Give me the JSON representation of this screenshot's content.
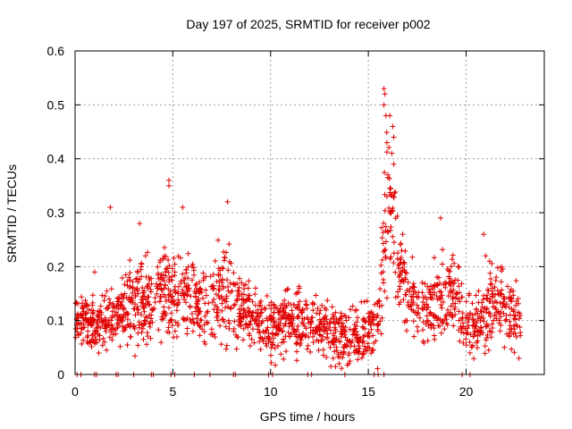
{
  "chart_data": {
    "type": "scatter",
    "title": "Day 197 of 2025, SRMTID for receiver p002",
    "xlabel": "GPS time / hours",
    "ylabel": "SRMTID / TECUs",
    "xlim": [
      0,
      24
    ],
    "ylim": [
      0,
      0.6
    ],
    "grid": true,
    "marker": "+",
    "series": [
      {
        "name": "SRMTID",
        "color": "#e00000",
        "profile": {
          "hours": [
            0.0,
            0.5,
            1.0,
            1.5,
            2.0,
            2.5,
            3.0,
            3.5,
            4.0,
            4.5,
            5.0,
            5.5,
            6.0,
            6.5,
            7.0,
            7.5,
            8.0,
            8.5,
            9.0,
            9.5,
            10.0,
            10.5,
            11.0,
            11.5,
            12.0,
            12.5,
            13.0,
            13.5,
            14.0,
            14.5,
            15.0,
            15.5,
            15.8,
            16.0,
            16.3,
            16.6,
            17.0,
            17.5,
            18.0,
            18.5,
            19.0,
            19.5,
            20.0,
            20.5,
            21.0,
            21.5,
            22.0,
            22.5,
            22.8
          ],
          "median": [
            0.1,
            0.095,
            0.09,
            0.1,
            0.1,
            0.12,
            0.13,
            0.14,
            0.14,
            0.15,
            0.15,
            0.15,
            0.14,
            0.13,
            0.14,
            0.15,
            0.15,
            0.13,
            0.11,
            0.1,
            0.09,
            0.095,
            0.1,
            0.1,
            0.095,
            0.09,
            0.08,
            0.075,
            0.07,
            0.07,
            0.09,
            0.1,
            0.22,
            0.3,
            0.26,
            0.2,
            0.15,
            0.12,
            0.11,
            0.12,
            0.15,
            0.14,
            0.11,
            0.09,
            0.1,
            0.14,
            0.12,
            0.11,
            0.1
          ],
          "spread": [
            0.03,
            0.03,
            0.03,
            0.04,
            0.04,
            0.05,
            0.06,
            0.06,
            0.05,
            0.06,
            0.06,
            0.05,
            0.05,
            0.05,
            0.05,
            0.06,
            0.06,
            0.05,
            0.04,
            0.04,
            0.04,
            0.04,
            0.04,
            0.04,
            0.04,
            0.035,
            0.035,
            0.035,
            0.035,
            0.035,
            0.04,
            0.05,
            0.12,
            0.12,
            0.08,
            0.06,
            0.05,
            0.04,
            0.04,
            0.06,
            0.05,
            0.05,
            0.04,
            0.035,
            0.05,
            0.05,
            0.05,
            0.04,
            0.04
          ]
        },
        "peaks": [
          {
            "x": 1.8,
            "y": 0.31
          },
          {
            "x": 3.3,
            "y": 0.28
          },
          {
            "x": 4.8,
            "y": 0.36
          },
          {
            "x": 4.8,
            "y": 0.35
          },
          {
            "x": 5.5,
            "y": 0.31
          },
          {
            "x": 7.8,
            "y": 0.32
          },
          {
            "x": 1.0,
            "y": 0.19
          },
          {
            "x": 3.6,
            "y": 0.22
          },
          {
            "x": 15.8,
            "y": 0.53
          },
          {
            "x": 15.85,
            "y": 0.52
          },
          {
            "x": 15.8,
            "y": 0.5
          },
          {
            "x": 15.9,
            "y": 0.48
          },
          {
            "x": 16.1,
            "y": 0.48
          },
          {
            "x": 16.25,
            "y": 0.46
          },
          {
            "x": 16.3,
            "y": 0.44
          },
          {
            "x": 15.95,
            "y": 0.43
          },
          {
            "x": 16.2,
            "y": 0.41
          },
          {
            "x": 16.3,
            "y": 0.39
          },
          {
            "x": 16.0,
            "y": 0.37
          },
          {
            "x": 15.95,
            "y": 0.33
          },
          {
            "x": 16.1,
            "y": 0.3
          },
          {
            "x": 18.7,
            "y": 0.29
          },
          {
            "x": 20.9,
            "y": 0.26
          },
          {
            "x": 21.0,
            "y": 0.22
          },
          {
            "x": 21.2,
            "y": 0.21
          },
          {
            "x": 21.8,
            "y": 0.2
          },
          {
            "x": 14.0,
            "y": 0.02
          },
          {
            "x": 13.2,
            "y": 0.03
          },
          {
            "x": 20.2,
            "y": 0.04
          },
          {
            "x": 22.7,
            "y": 0.03
          },
          {
            "x": 9.9,
            "y": 0.06
          }
        ],
        "zero_hours": [
          0.1,
          0.3,
          1.0,
          1.1,
          2.1,
          2.2,
          3.0,
          3.9,
          4.0,
          4.9,
          5.1,
          6.1,
          6.9,
          8.1,
          8.2,
          9.9,
          10.1,
          11.9,
          12.1,
          13.8,
          15.3,
          15.5,
          15.8,
          19.8,
          20.2
        ]
      }
    ]
  }
}
